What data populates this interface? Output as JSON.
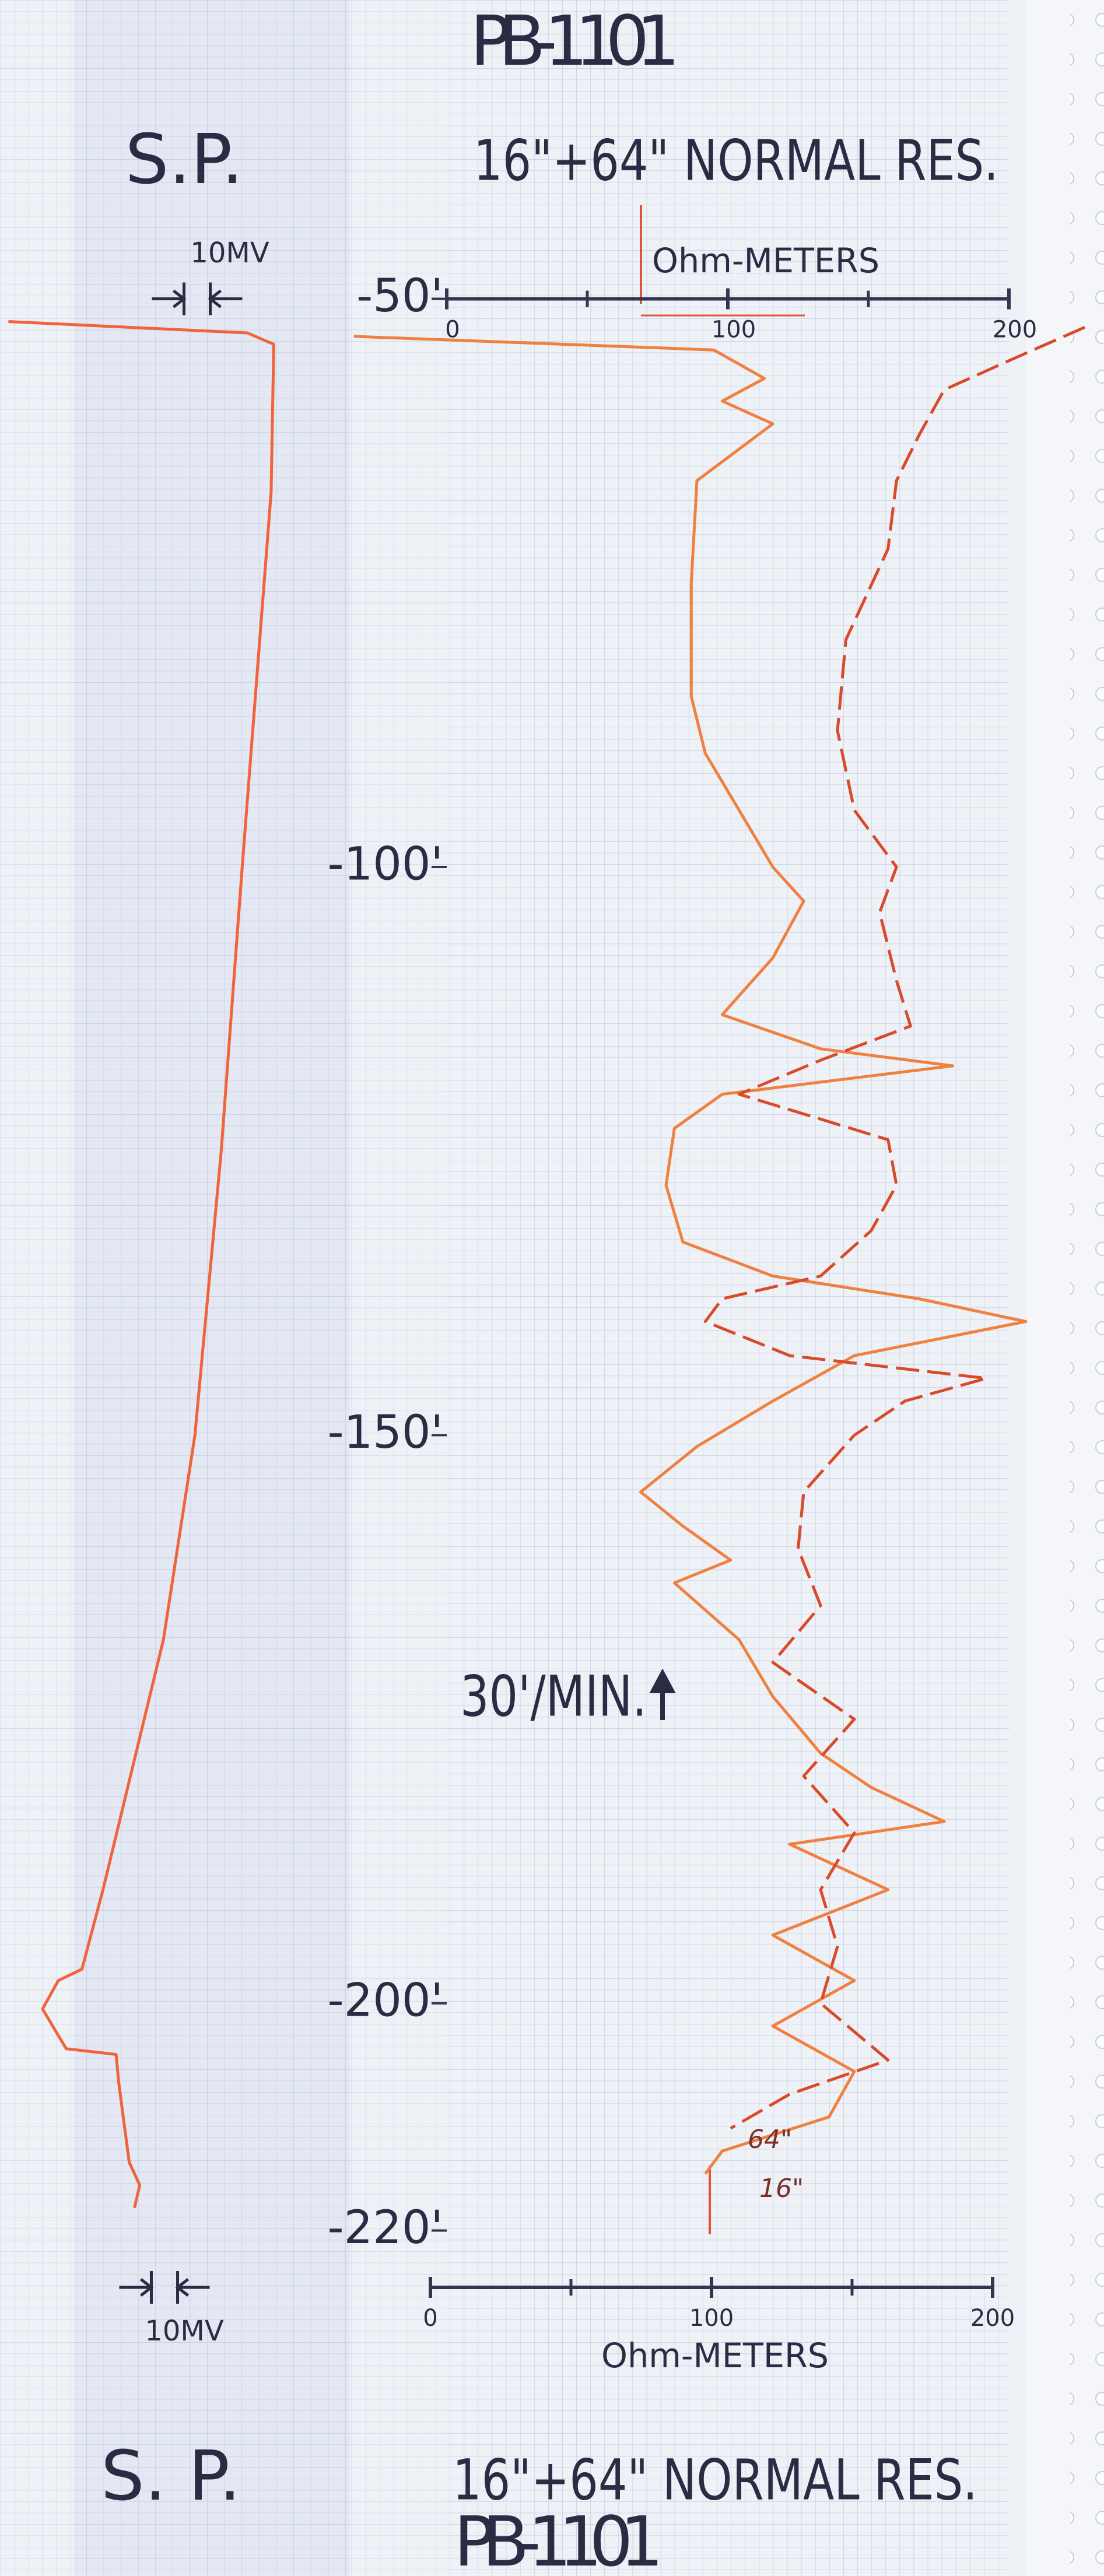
{
  "page_title": "PB-1101",
  "speed_note": "30'/MIN.",
  "chart_data": [
    {
      "type": "line",
      "title": "S.P.",
      "title_bottom": "S. P.",
      "scale": {
        "value": 10,
        "label": "10MV"
      },
      "xlim": [
        0,
        105
      ],
      "ylim": [
        -250.4,
        -23.7
      ],
      "series": [
        {
          "color": "#f0643c",
          "depth": [
            -52,
            -53,
            -54,
            -67,
            -100,
            -125,
            -150,
            -168,
            -190,
            -197,
            -198,
            -200.5,
            -204,
            -204.5,
            -207,
            -214,
            -216,
            -218
          ],
          "values": [
            -25,
            66,
            76,
            75,
            64,
            56,
            46,
            34,
            11,
            3,
            -6,
            -12,
            -3,
            16,
            17,
            21,
            25,
            23
          ]
        }
      ]
    },
    {
      "type": "line",
      "title": "16\"+64\" NORMAL RES.",
      "x_label": "Ohm-METERS",
      "xlim": [
        0,
        200
      ],
      "xticks": [
        0,
        100,
        200
      ],
      "xminor_ticks": [
        50,
        150
      ],
      "ylim": [
        -250.4,
        -23.7
      ],
      "yticks": [
        {
          "value": -50,
          "label": "-50'"
        },
        {
          "value": -100,
          "label": "-100'"
        },
        {
          "value": -150,
          "label": "-150'"
        },
        {
          "value": -200,
          "label": "-200'"
        },
        {
          "value": -220,
          "label": "-220'"
        }
      ],
      "series": [
        {
          "name": "16\"",
          "color": "#f08040",
          "line_style": "solid",
          "depth": [
            -53.3,
            -54.5,
            -57,
            -59,
            -61,
            -66,
            -75,
            -85,
            -90,
            -95,
            -100,
            -103,
            -108,
            -113,
            -116,
            -117.5,
            -120,
            -123,
            -128,
            -133,
            -136,
            -138,
            -140,
            -143,
            -147,
            -151,
            -155,
            -158,
            -161,
            -163,
            -168,
            -173,
            -178,
            -181,
            -184,
            -186,
            -190,
            -194,
            -198,
            -202,
            -206,
            -210,
            -213,
            -215
          ],
          "values": [
            -33,
            95,
            113,
            98,
            116,
            89,
            87,
            87,
            92,
            104,
            116,
            127,
            116,
            98,
            133,
            180,
            98,
            81,
            78,
            84,
            116,
            168,
            206,
            145,
            116,
            89,
            69,
            84,
            101,
            81,
            104,
            116,
            133,
            151,
            177,
            122,
            157,
            116,
            145,
            116,
            145,
            136,
            98,
            92
          ]
        },
        {
          "name": "64\"",
          "color": "#d94a2a",
          "line_style": "dashed",
          "depth": [
            -52.5,
            -55,
            -58,
            -62,
            -66,
            -72,
            -80,
            -88,
            -95,
            -100,
            -104,
            -110,
            -114,
            -117,
            -120,
            -124,
            -128,
            -132,
            -136,
            -138,
            -140,
            -143,
            -145,
            -147,
            -150,
            -155,
            -160,
            -165,
            -170,
            -175,
            -180,
            -185,
            -190,
            -195,
            -200,
            -205,
            -208,
            -211
          ],
          "values": [
            227,
            204,
            177,
            168,
            160,
            157,
            142,
            139,
            145,
            160,
            154,
            160,
            165,
            133,
            104,
            157,
            160,
            151,
            133,
            98,
            92,
            122,
            192,
            163,
            145,
            127,
            125,
            133,
            116,
            145,
            127,
            145,
            133,
            139,
            133,
            157,
            122,
            101
          ]
        }
      ]
    }
  ]
}
